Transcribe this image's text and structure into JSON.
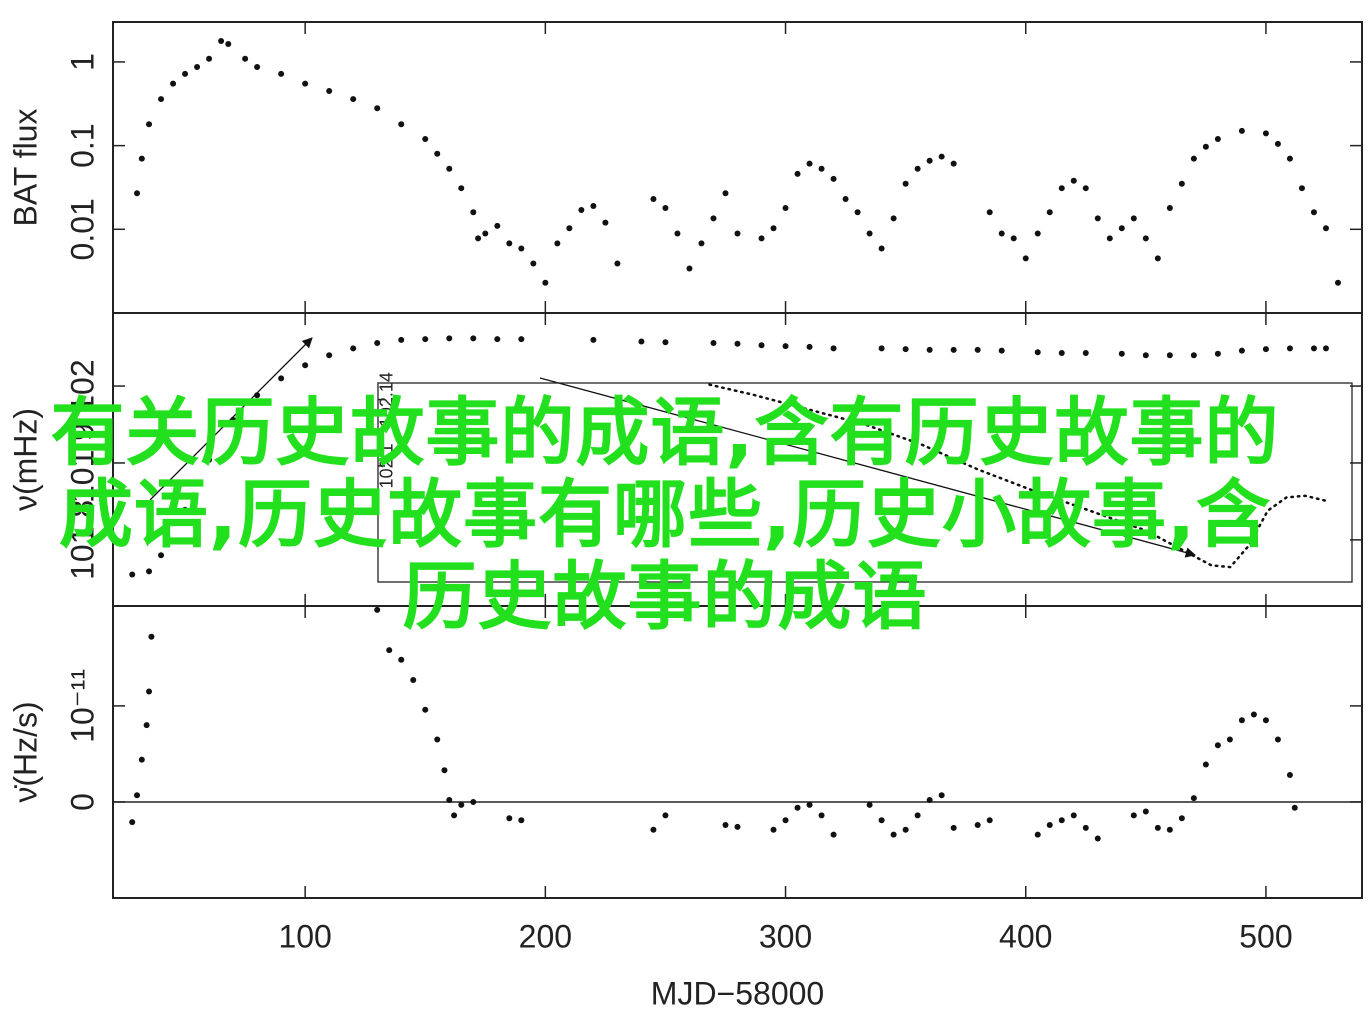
{
  "overlay_text": "有关历史故事的成语,含有历史故事的成语,历史故事有哪些,历史小故事,含历史故事的成语",
  "chart_data": [
    {
      "type": "scatter",
      "ylabel": "BAT flux",
      "yscale": "log",
      "xlim": [
        20,
        540
      ],
      "ylim": [
        0.001,
        3
      ],
      "yticks": [
        0.01,
        0.1,
        1
      ],
      "series": [
        {
          "color": "#111111",
          "x": [
            30,
            32,
            35,
            40,
            45,
            50,
            55,
            60,
            65,
            68,
            75,
            80,
            90,
            100,
            110,
            120,
            130,
            140,
            150,
            155,
            160,
            165,
            170,
            172,
            175,
            180,
            185,
            190,
            195,
            200,
            205,
            210,
            215,
            220,
            225,
            230,
            245,
            250,
            255,
            260,
            265,
            270,
            275,
            280,
            290,
            295,
            300,
            305,
            310,
            315,
            320,
            325,
            330,
            335,
            340,
            345,
            350,
            355,
            360,
            365,
            370,
            385,
            390,
            395,
            400,
            405,
            410,
            415,
            420,
            425,
            430,
            435,
            440,
            445,
            450,
            455,
            460,
            465,
            470,
            475,
            480,
            490,
            500,
            505,
            510,
            515,
            520,
            525,
            530
          ],
          "values": [
            0.027,
            0.07,
            0.18,
            0.36,
            0.55,
            0.72,
            0.87,
            1.09,
            1.78,
            1.64,
            1.09,
            0.87,
            0.72,
            0.55,
            0.45,
            0.36,
            0.28,
            0.18,
            0.12,
            0.08,
            0.053,
            0.031,
            0.016,
            0.0078,
            0.0089,
            0.011,
            0.0068,
            0.0059,
            0.0039,
            0.0023,
            0.0068,
            0.0103,
            0.017,
            0.019,
            0.012,
            0.0039,
            0.023,
            0.018,
            0.0089,
            0.0034,
            0.0068,
            0.0135,
            0.027,
            0.0089,
            0.0078,
            0.0103,
            0.018,
            0.046,
            0.061,
            0.053,
            0.04,
            0.023,
            0.016,
            0.0089,
            0.0059,
            0.0135,
            0.035,
            0.053,
            0.066,
            0.074,
            0.061,
            0.016,
            0.0089,
            0.0078,
            0.0045,
            0.0089,
            0.016,
            0.031,
            0.038,
            0.031,
            0.0135,
            0.0078,
            0.0103,
            0.0135,
            0.0078,
            0.0045,
            0.018,
            0.035,
            0.07,
            0.097,
            0.12,
            0.15,
            0.14,
            0.105,
            0.07,
            0.031,
            0.016,
            0.0103,
            0.0023
          ]
        }
      ]
    },
    {
      "type": "scatter",
      "ylabel": "ν(mHz)",
      "xlim": [
        20,
        540
      ],
      "ylim": [
        101.714,
        102.095
      ],
      "yticks": [
        101.8,
        101.9,
        102
      ],
      "series": [
        {
          "color": "#111111",
          "x": [
            28,
            35,
            40,
            50,
            60,
            70,
            80,
            90,
            100,
            110,
            120,
            130,
            140,
            150,
            160,
            170,
            180,
            190,
            220,
            240,
            250,
            270,
            280,
            290,
            300,
            310,
            320,
            340,
            350,
            360,
            370,
            380,
            390,
            405,
            415,
            425,
            440,
            450,
            460,
            470,
            480,
            490,
            500,
            510,
            520,
            525
          ],
          "values": [
            101.755,
            101.759,
            101.78,
            101.839,
            101.904,
            101.956,
            101.988,
            102.01,
            102.027,
            102.04,
            102.049,
            102.056,
            102.06,
            102.061,
            102.062,
            102.062,
            102.061,
            102.061,
            102.06,
            102.058,
            102.057,
            102.056,
            102.055,
            102.053,
            102.052,
            102.051,
            102.049,
            102.049,
            102.048,
            102.047,
            102.047,
            102.047,
            102.046,
            102.044,
            102.043,
            102.043,
            102.042,
            102.04,
            102.04,
            102.04,
            102.042,
            102.046,
            102.048,
            102.049,
            102.049,
            102.049
          ]
        }
      ]
    },
    {
      "type": "line",
      "xlim": [
        20,
        540
      ],
      "ylim": [
        102.03,
        102.15
      ],
      "yticks": [
        102.1,
        102.14
      ],
      "series": [
        {
          "color": "#111111",
          "x": [
            197,
            220,
            250,
            280,
            310,
            340,
            370,
            400,
            430,
            450,
            465,
            475,
            485,
            495,
            505,
            515,
            526
          ],
          "values": [
            102.149,
            102.143,
            102.134,
            102.125,
            102.113,
            102.098,
            102.085,
            102.073,
            102.061,
            102.049,
            102.04,
            102.039,
            102.052,
            102.073,
            102.081,
            102.082,
            102.079
          ]
        }
      ]
    },
    {
      "type": "scatter",
      "ylabel": "ν̇(Hz/s)",
      "xlabel": "MJD−58000",
      "zero_line": true,
      "xlim": [
        20,
        540
      ],
      "ylim": [
        -1e-11,
        2.04e-11
      ],
      "xticks": [
        100,
        200,
        300,
        400,
        500
      ],
      "yticks": [
        0,
        {
          "value": 1e-11,
          "label": "10⁻¹¹"
        }
      ],
      "series": [
        {
          "color": "#111111",
          "x": [
            28,
            30,
            32,
            34,
            35,
            36,
            130,
            135,
            140,
            145,
            150,
            155,
            158,
            160,
            162,
            165,
            170,
            185,
            190,
            245,
            250,
            275,
            280,
            295,
            300,
            305,
            310,
            315,
            320,
            335,
            340,
            345,
            350,
            355,
            360,
            365,
            370,
            380,
            385,
            405,
            410,
            415,
            420,
            425,
            430,
            445,
            450,
            455,
            460,
            465,
            470,
            475,
            480,
            485,
            490,
            495,
            500,
            505,
            510,
            512
          ],
          "values": [
            -2.1e-12,
            7e-13,
            4.4e-12,
            8e-12,
            1.15e-11,
            1.72e-11,
            2e-11,
            1.58e-11,
            1.48e-11,
            1.27e-11,
            9.6e-12,
            6.5e-12,
            3.3e-12,
            2e-13,
            -1.4e-12,
            -3e-13,
            0,
            -1.7e-12,
            -1.9e-12,
            -2.9e-12,
            -1.4e-12,
            -2.4e-12,
            -2.6e-12,
            -2.9e-12,
            -1.9e-12,
            -6e-13,
            -3e-13,
            -1.4e-12,
            -3.4e-12,
            -3e-13,
            -1.9e-12,
            -3.4e-12,
            -2.9e-12,
            -1.4e-12,
            2e-13,
            7e-13,
            -2.7e-12,
            -2.4e-12,
            -1.9e-12,
            -3.4e-12,
            -2.4e-12,
            -1.9e-12,
            -1.4e-12,
            -2.7e-12,
            -3.8e-12,
            -1.4e-12,
            -1e-12,
            -2.7e-12,
            -2.9e-12,
            -1.7e-12,
            4e-13,
            3.9e-12,
            5.9e-12,
            6.5e-12,
            8.5e-12,
            9.1e-12,
            8.5e-12,
            6.5e-12,
            2.8e-12,
            -6e-13
          ]
        }
      ]
    }
  ]
}
